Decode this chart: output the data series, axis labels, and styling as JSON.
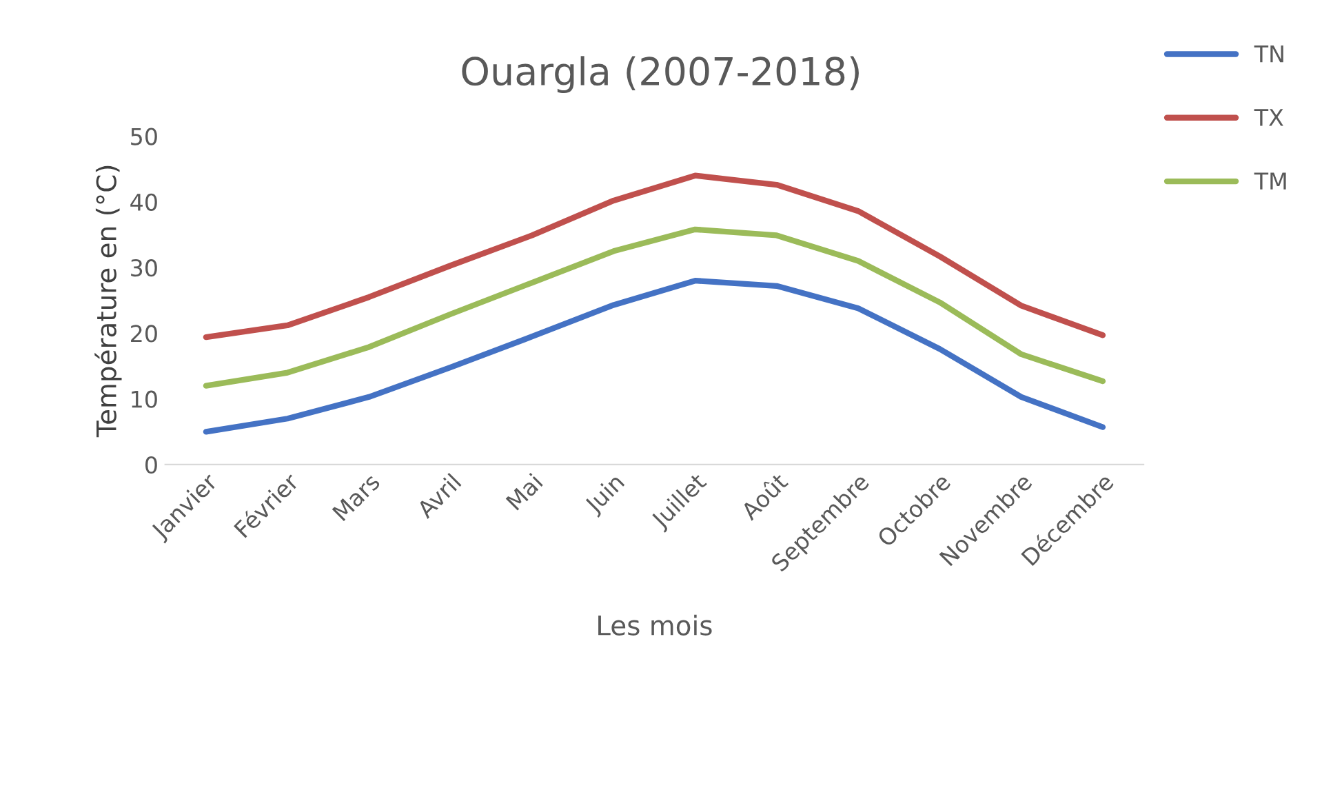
{
  "chart_data": {
    "type": "line",
    "title": "Ouargla (2007-2018)",
    "xlabel": "Les mois",
    "ylabel": "Température en (°C)",
    "categories": [
      "Janvier",
      "Février",
      "Mars",
      "Avril",
      "Mai",
      "Juin",
      "Juillet",
      "Août",
      "Septembre",
      "Octobre",
      "Novembre",
      "Décembre"
    ],
    "series": [
      {
        "name": "TN",
        "color": "#4472c4",
        "values": [
          5.0,
          7.0,
          10.3,
          14.8,
          19.5,
          24.3,
          28.0,
          27.2,
          23.8,
          17.6,
          10.3,
          5.7
        ]
      },
      {
        "name": "TX",
        "color": "#c0504d",
        "values": [
          19.4,
          21.2,
          25.5,
          30.3,
          34.9,
          40.2,
          44.0,
          42.6,
          38.6,
          31.7,
          24.2,
          19.7
        ]
      },
      {
        "name": "TM",
        "color": "#9bbb59",
        "values": [
          12.0,
          14.0,
          17.9,
          22.9,
          27.7,
          32.5,
          35.8,
          34.9,
          31.0,
          24.7,
          16.8,
          12.7
        ]
      }
    ],
    "ylim": [
      0,
      50
    ],
    "yticks": [
      0,
      10,
      20,
      30,
      40,
      50
    ],
    "grid": false,
    "legend": "top right",
    "marker": "none",
    "line_style": "solid"
  }
}
